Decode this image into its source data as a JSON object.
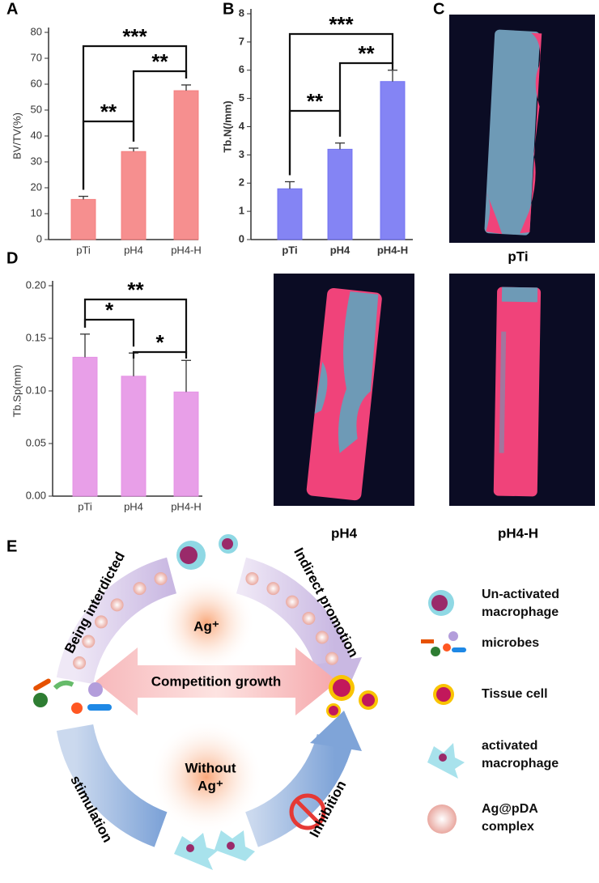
{
  "panel_labels": [
    "A",
    "B",
    "C",
    "D",
    "E"
  ],
  "chart_data": [
    {
      "type": "bar",
      "ylabel": "BV/TV(%)",
      "categories": [
        "pTi",
        "pH4",
        "pH4-H"
      ],
      "values": [
        15.5,
        34,
        57.5
      ],
      "errors": [
        1.2,
        1.3,
        2.2
      ],
      "color": "#f47b7b",
      "ylim": [
        0,
        80
      ],
      "yticks": [
        0,
        10,
        20,
        30,
        40,
        50,
        60,
        70,
        80
      ],
      "annotations": [
        "**",
        "**",
        "***"
      ]
    },
    {
      "type": "bar",
      "ylabel": "Tb.N(/mm)",
      "categories": [
        "pTi",
        "pH4",
        "pH4-H"
      ],
      "values": [
        1.8,
        3.2,
        5.6
      ],
      "errors": [
        0.25,
        0.22,
        0.4
      ],
      "color": "#6f6ff2",
      "ylim": [
        0,
        8
      ],
      "yticks": [
        0,
        1,
        2,
        3,
        4,
        5,
        6,
        7,
        8
      ],
      "annotations": [
        "**",
        "**",
        "***"
      ]
    },
    {
      "type": "bar",
      "ylabel": "Tb.Sp(mm)",
      "categories": [
        "pTi",
        "pH4",
        "pH4-H"
      ],
      "values": [
        0.132,
        0.114,
        0.099
      ],
      "errors": [
        0.022,
        0.022,
        0.03
      ],
      "color": "#e48ee4",
      "ylim": [
        0,
        0.2
      ],
      "yticks": [
        {
          "value": 0,
          "label": "0.00"
        },
        {
          "value": 0.05,
          "label": "0.05"
        },
        {
          "value": 0.1,
          "label": "0.10"
        },
        {
          "value": 0.15,
          "label": "0.15"
        },
        {
          "value": 0.2,
          "label": "0.20"
        }
      ],
      "annotations": [
        "*",
        "*",
        "**"
      ]
    }
  ],
  "images": {
    "labels": [
      "pTi",
      "pH4",
      "pH4-H"
    ]
  },
  "diagram": {
    "arc_labels": [
      "Being interdicted",
      "Indirect promotion",
      "stimulation",
      "Inhibition"
    ],
    "center_top": "Ag⁺",
    "arrow": "Competition growth",
    "center_bottom": [
      "Without",
      "Ag⁺"
    ],
    "legend": [
      [
        "Un-activated",
        "macrophage"
      ],
      [
        "microbes"
      ],
      [
        "Tissue cell"
      ],
      [
        "activated",
        "macrophage"
      ],
      [
        "Ag@pDA",
        "complex"
      ]
    ]
  }
}
